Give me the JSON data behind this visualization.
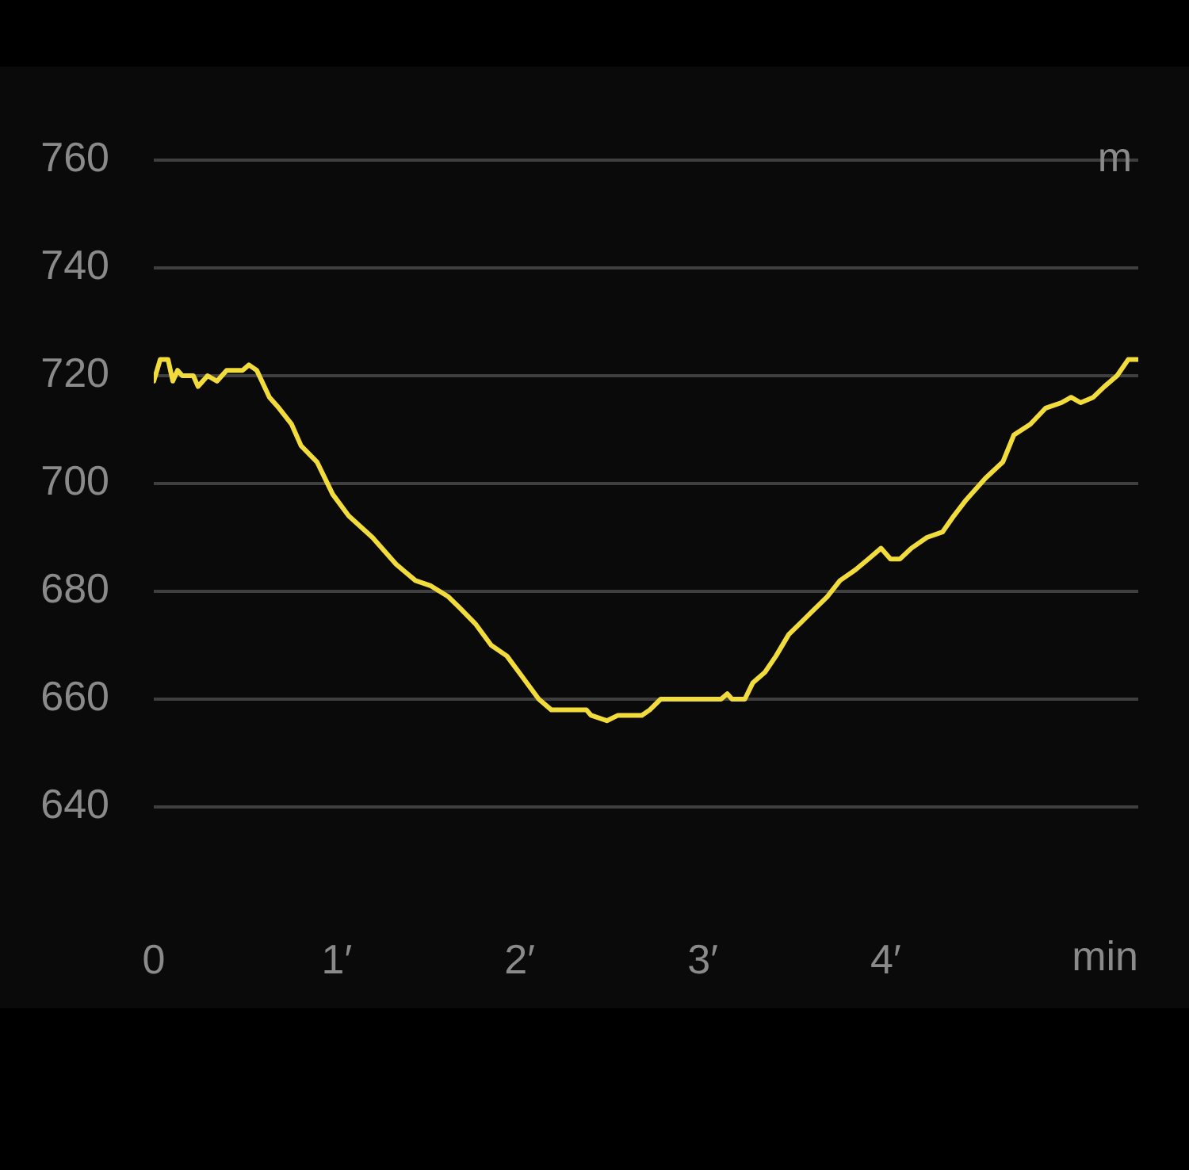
{
  "chart_data": {
    "type": "line",
    "xlabel": "min",
    "ylabel": "m",
    "xlim": [
      0,
      5.38
    ],
    "ylim": [
      640,
      760
    ],
    "xticks": [
      0,
      {
        "value": 1,
        "label": "1′"
      },
      {
        "value": 2,
        "label": "2′"
      },
      {
        "value": 3,
        "label": "3′"
      },
      {
        "value": 4,
        "label": "4′"
      }
    ],
    "yticks": [
      640,
      660,
      680,
      700,
      720,
      740,
      760
    ],
    "grid": "y",
    "legend": false,
    "marker": "none",
    "line_style": "solid",
    "series": [
      {
        "color": "#f2dc3c",
        "x": [
          0,
          0.035,
          0.078,
          0.104,
          0.13,
          0.156,
          0.216,
          0.242,
          0.294,
          0.346,
          0.398,
          0.485,
          0.52,
          0.563,
          0.632,
          0.684,
          0.753,
          0.805,
          0.892,
          0.978,
          1.065,
          1.195,
          1.325,
          1.43,
          1.515,
          1.61,
          1.67,
          1.757,
          1.844,
          1.93,
          2.017,
          2.104,
          2.173,
          2.364,
          2.39,
          2.476,
          2.537,
          2.667,
          2.71,
          2.77,
          3.1,
          3.134,
          3.16,
          3.23,
          3.273,
          3.34,
          3.4,
          3.47,
          3.53,
          3.59,
          3.68,
          3.75,
          3.835,
          3.905,
          3.974,
          4.026,
          4.078,
          4.14,
          4.225,
          4.31,
          4.372,
          4.44,
          4.545,
          4.64,
          4.7,
          4.79,
          4.874,
          4.96,
          5.013,
          5.065,
          5.134,
          5.195,
          5.264,
          5.325,
          5.377
        ],
        "values": [
          719,
          723,
          723,
          719,
          721,
          720,
          720,
          718,
          720,
          719,
          721,
          721,
          722,
          721,
          716,
          714,
          711,
          707,
          704,
          698,
          694,
          690,
          685,
          682,
          681,
          679,
          677,
          674,
          670,
          668,
          664,
          660,
          658,
          658,
          657,
          656,
          657,
          657,
          658,
          660,
          660,
          661,
          660,
          660,
          663,
          665,
          668,
          672,
          674,
          676,
          679,
          682,
          684,
          686,
          688,
          686,
          686,
          688,
          690,
          691,
          694,
          697,
          701,
          704,
          709,
          711,
          714,
          715,
          716,
          715,
          716,
          718,
          720,
          723,
          723
        ]
      }
    ]
  }
}
